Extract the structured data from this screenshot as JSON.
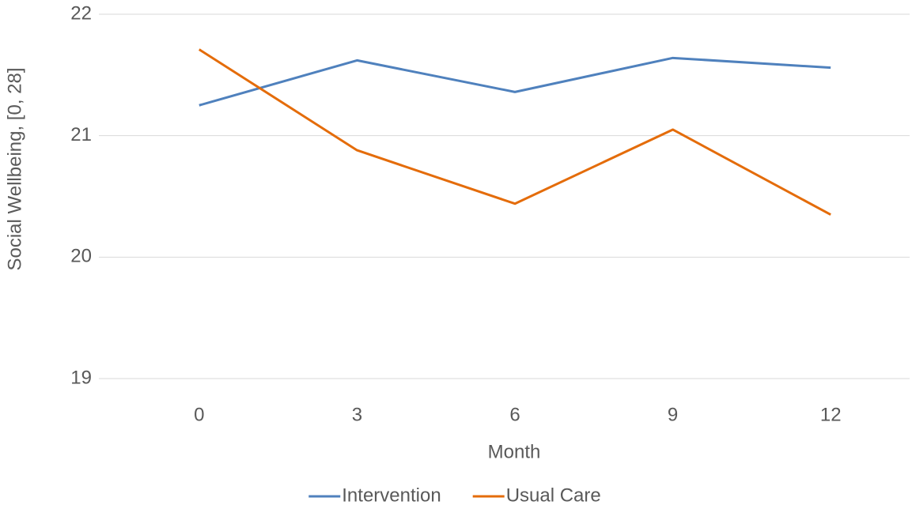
{
  "chart_data": {
    "type": "line",
    "x_label": "Month",
    "y_label": "Social Wellbeing, [0, 28]",
    "categories": [
      "0",
      "3",
      "6",
      "9",
      "12"
    ],
    "series": [
      {
        "name": "Intervention",
        "color": "#4f81bd",
        "values": [
          21.25,
          21.62,
          21.36,
          21.64,
          21.56
        ]
      },
      {
        "name": "Usual Care",
        "color": "#e46c0a",
        "values": [
          21.71,
          20.88,
          20.44,
          21.05,
          20.35
        ]
      }
    ],
    "ylim": [
      19,
      22
    ],
    "yticks": [
      19,
      20,
      21,
      22
    ],
    "grid": true,
    "legend": "bottom"
  }
}
